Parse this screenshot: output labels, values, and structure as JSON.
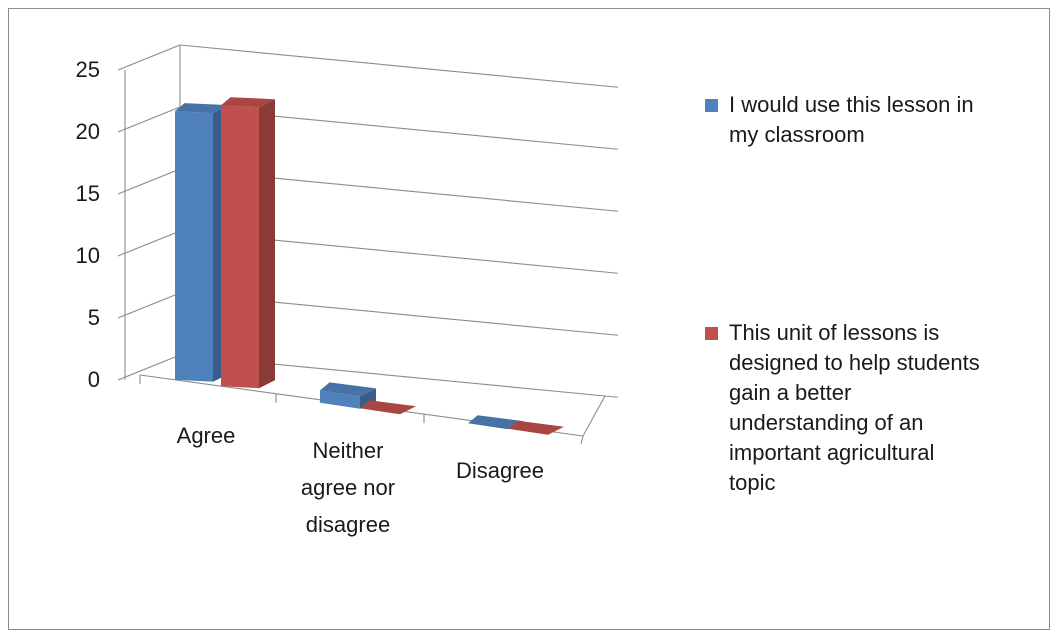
{
  "chart_data": {
    "type": "bar",
    "categories": [
      "Agree",
      "Neither agree nor disagree",
      "Disagree"
    ],
    "category_label_lines": [
      [
        "Agree"
      ],
      [
        "Neither",
        "agree nor",
        "disagree"
      ],
      [
        "Disagree"
      ]
    ],
    "series": [
      {
        "name": "I would use this lesson in my classroom",
        "values": [
          22,
          1,
          0
        ]
      },
      {
        "name": "This unit of lessons is designed to help students gain a better understanding of an important agricultural topic",
        "values": [
          23,
          0,
          0
        ]
      }
    ],
    "colors": [
      "#4f81bd",
      "#c0504d"
    ],
    "ylim": [
      0,
      25
    ],
    "yticks": [
      0,
      5,
      10,
      15,
      20,
      25
    ],
    "grid": true,
    "projection": "3d",
    "legend_position": "right"
  },
  "legend": {
    "items": [
      {
        "label_lines": [
          "I would use this lesson in",
          "my classroom"
        ]
      },
      {
        "label_lines": [
          "This unit of lessons is",
          "designed to help students",
          "gain a better",
          "understanding of an",
          "important agricultural",
          "topic"
        ]
      }
    ]
  }
}
